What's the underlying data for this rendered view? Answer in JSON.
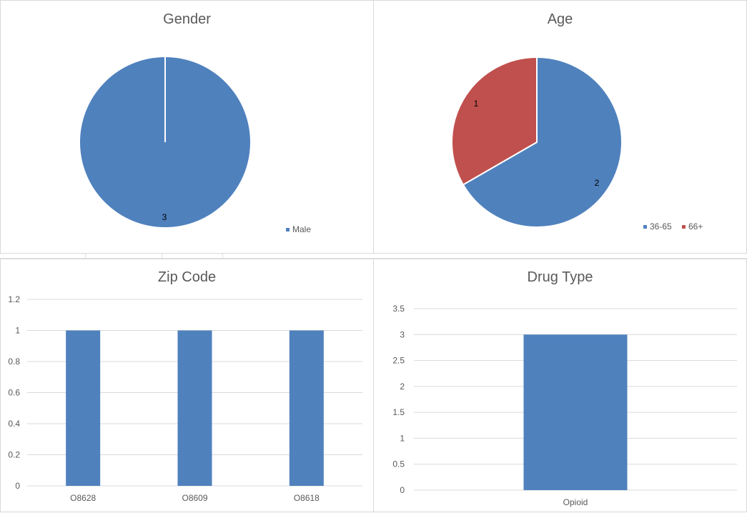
{
  "chart_data": [
    {
      "type": "pie",
      "title": "Gender",
      "categories": [
        "Male"
      ],
      "values": [
        3
      ],
      "data_labels": [
        "3"
      ],
      "colors": [
        "#4f81bd"
      ],
      "legend": "bottom-right"
    },
    {
      "type": "pie",
      "title": "Age",
      "categories": [
        "36-65",
        "66+"
      ],
      "values": [
        2,
        1
      ],
      "data_labels": [
        "2",
        "1"
      ],
      "colors": [
        "#4f81bd",
        "#c0504d"
      ],
      "legend": "bottom-right"
    },
    {
      "type": "bar",
      "title": "Zip Code",
      "categories": [
        "O8628",
        "O8609",
        "O8618"
      ],
      "values": [
        1,
        1,
        1
      ],
      "ylim": [
        0,
        1.2
      ],
      "yticks": [
        "0",
        "0.2",
        "0.4",
        "0.6",
        "0.8",
        "1",
        "1.2"
      ],
      "grid": true,
      "color": "#4f81bd"
    },
    {
      "type": "bar",
      "title": "Drug Type",
      "categories": [
        "Opioid"
      ],
      "values": [
        3
      ],
      "ylim": [
        0,
        3.5
      ],
      "yticks": [
        "0",
        "0.5",
        "1",
        "1.5",
        "2",
        "2.5",
        "3",
        "3.5"
      ],
      "grid": true,
      "color": "#4f81bd"
    }
  ]
}
